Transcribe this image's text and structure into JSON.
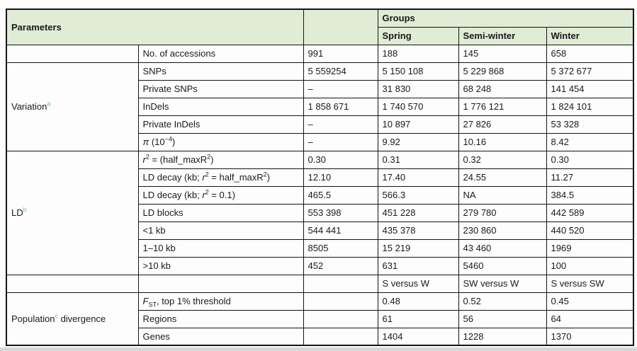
{
  "header": {
    "parameters": "Parameters",
    "groups": "Groups",
    "columns": [
      "Spring",
      "Semi-winter",
      "Winter"
    ]
  },
  "rows": [
    {
      "param": [
        {
          "t": "No. of accessions"
        }
      ],
      "values": [
        "991",
        "188",
        "145",
        "658"
      ]
    },
    {
      "section": [
        {
          "t": "Variation"
        },
        {
          "t": "a",
          "s": "note"
        }
      ],
      "param": [
        {
          "t": "SNPs"
        }
      ],
      "values": [
        "5 559254",
        "5 150 108",
        "5 229 868",
        "5 372 677"
      ]
    },
    {
      "param": [
        {
          "t": "Private SNPs"
        }
      ],
      "values": [
        "–",
        "31 830",
        "68 248",
        "141 454"
      ]
    },
    {
      "param": [
        {
          "t": "InDels"
        }
      ],
      "values": [
        "1 858 671",
        "1 740 570",
        "1 776 121",
        "1 824 101"
      ]
    },
    {
      "param": [
        {
          "t": "Private InDels"
        }
      ],
      "values": [
        "–",
        "10 897",
        "27 826",
        "53 328"
      ]
    },
    {
      "param": [
        {
          "t": "π",
          "s": "i"
        },
        {
          "t": " (10"
        },
        {
          "t": "−4",
          "s": "sup"
        },
        {
          "t": ")"
        }
      ],
      "values": [
        "–",
        "9.92",
        "10.16",
        "8.42"
      ]
    },
    {
      "section": [
        {
          "t": "LD"
        },
        {
          "t": "b",
          "s": "note"
        }
      ],
      "param": [
        {
          "t": "r",
          "s": "i"
        },
        {
          "t": "2",
          "s": "sup"
        },
        {
          "t": " = (half_maxR"
        },
        {
          "t": "2",
          "s": "sup"
        },
        {
          "t": ")"
        }
      ],
      "values": [
        "0.30",
        "0.31",
        "0.32",
        "0.30"
      ]
    },
    {
      "param": [
        {
          "t": "LD decay (kb; "
        },
        {
          "t": "r",
          "s": "i"
        },
        {
          "t": "2",
          "s": "sup"
        },
        {
          "t": " = half_maxR"
        },
        {
          "t": "2",
          "s": "sup"
        },
        {
          "t": ")"
        }
      ],
      "values": [
        "12.10",
        "17.40",
        "24.55",
        "11.27"
      ]
    },
    {
      "param": [
        {
          "t": "LD decay (kb; "
        },
        {
          "t": "r",
          "s": "i"
        },
        {
          "t": "2",
          "s": "sup"
        },
        {
          "t": " = 0.1)"
        }
      ],
      "values": [
        "465.5",
        "566.3",
        "NA",
        "384.5"
      ]
    },
    {
      "param": [
        {
          "t": "LD blocks"
        }
      ],
      "values": [
        "553 398",
        "451 228",
        "279 780",
        "442 589"
      ]
    },
    {
      "param": [
        {
          "t": "<1 kb"
        }
      ],
      "indent": true,
      "values": [
        "544 441",
        "435 378",
        "230 860",
        "440 520"
      ]
    },
    {
      "param": [
        {
          "t": "1–10 kb"
        }
      ],
      "indent": true,
      "values": [
        "8505",
        "15 219",
        "43 460",
        "1969"
      ]
    },
    {
      "param": [
        {
          "t": ">10 kb"
        }
      ],
      "indent": true,
      "values": [
        "452",
        "631",
        "5460",
        "100"
      ]
    },
    {
      "param": [],
      "values": [
        "",
        "S versus W",
        "SW versus W",
        "S versus SW"
      ]
    },
    {
      "section": [
        {
          "t": "Population"
        },
        {
          "t": "c",
          "s": "note"
        },
        {
          "t": " divergence"
        }
      ],
      "param": [
        {
          "t": "F",
          "s": "i"
        },
        {
          "t": "ST",
          "s": "sub"
        },
        {
          "t": ", top 1% threshold"
        }
      ],
      "values": [
        "",
        "0.48",
        "0.52",
        "0.45"
      ]
    },
    {
      "param": [
        {
          "t": "Regions"
        }
      ],
      "values": [
        "",
        "61",
        "56",
        "64"
      ]
    },
    {
      "param": [
        {
          "t": "Genes"
        }
      ],
      "values": [
        "",
        "1404",
        "1228",
        "1370"
      ]
    }
  ]
}
